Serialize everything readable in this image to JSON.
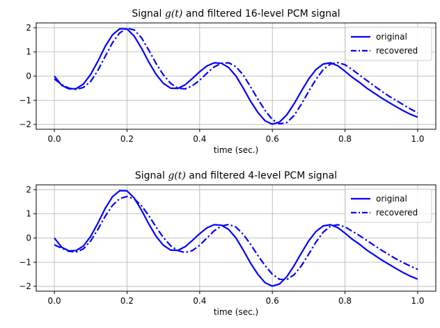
{
  "chart_data": [
    {
      "type": "line",
      "title_prefix": "Signal ",
      "title_math": "g(t)",
      "title_suffix": " and filtered 16-level PCM signal",
      "xlabel": "time (sec.)",
      "ylabel": "",
      "xlim": [
        -0.05,
        1.05
      ],
      "ylim": [
        -2.2,
        2.2
      ],
      "xticks": [
        0.0,
        0.2,
        0.4,
        0.6,
        0.8,
        1.0
      ],
      "xtick_labels": [
        "0.0",
        "0.2",
        "0.4",
        "0.6",
        "0.8",
        "1.0"
      ],
      "yticks": [
        -2,
        -1,
        0,
        1,
        2
      ],
      "ytick_labels": [
        "−2",
        "−1",
        "0",
        "1",
        "2"
      ],
      "grid": true,
      "legend_position": "top-right",
      "series": [
        {
          "name": "original",
          "style": "solid",
          "color": "#0000ff",
          "x": [
            0.0,
            0.02,
            0.04,
            0.06,
            0.08,
            0.1,
            0.12,
            0.14,
            0.16,
            0.18,
            0.2,
            0.22,
            0.24,
            0.26,
            0.28,
            0.3,
            0.32,
            0.34,
            0.36,
            0.38,
            0.4,
            0.42,
            0.44,
            0.46,
            0.48,
            0.5,
            0.52,
            0.54,
            0.56,
            0.58,
            0.6,
            0.62,
            0.64,
            0.66,
            0.68,
            0.7,
            0.72,
            0.74,
            0.76,
            0.78,
            0.8,
            0.82,
            0.84,
            0.86,
            0.88,
            0.9,
            0.92,
            0.94,
            0.96,
            0.98,
            1.0
          ],
          "y": [
            0.0,
            -0.38,
            -0.53,
            -0.52,
            -0.33,
            0.07,
            0.62,
            1.23,
            1.71,
            1.96,
            1.95,
            1.65,
            1.15,
            0.58,
            0.07,
            -0.3,
            -0.5,
            -0.51,
            -0.36,
            -0.1,
            0.18,
            0.42,
            0.55,
            0.53,
            0.35,
            0.0,
            -0.5,
            -1.04,
            -1.5,
            -1.85,
            -1.99,
            -1.9,
            -1.6,
            -1.14,
            -0.62,
            -0.12,
            0.27,
            0.5,
            0.55,
            0.43,
            0.2,
            -0.05,
            -0.26,
            -0.5,
            -0.7,
            -0.9,
            -1.08,
            -1.26,
            -1.43,
            -1.58,
            -1.7
          ]
        },
        {
          "name": "recovered",
          "style": "dashdot",
          "color": "#0000ff",
          "x": [
            0.0,
            0.02,
            0.04,
            0.06,
            0.08,
            0.1,
            0.12,
            0.14,
            0.16,
            0.18,
            0.2,
            0.22,
            0.24,
            0.26,
            0.28,
            0.3,
            0.32,
            0.34,
            0.36,
            0.38,
            0.4,
            0.42,
            0.44,
            0.46,
            0.48,
            0.5,
            0.52,
            0.54,
            0.56,
            0.58,
            0.6,
            0.62,
            0.64,
            0.66,
            0.68,
            0.7,
            0.72,
            0.74,
            0.76,
            0.78,
            0.8,
            0.82,
            0.84,
            0.86,
            0.88,
            0.9,
            0.92,
            0.94,
            0.96,
            0.98,
            1.0
          ],
          "y": [
            -0.12,
            -0.35,
            -0.5,
            -0.55,
            -0.47,
            -0.22,
            0.24,
            0.82,
            1.38,
            1.79,
            1.98,
            1.91,
            1.58,
            1.07,
            0.52,
            0.05,
            -0.3,
            -0.5,
            -0.53,
            -0.4,
            -0.17,
            0.12,
            0.38,
            0.53,
            0.55,
            0.39,
            0.04,
            -0.44,
            -0.95,
            -1.42,
            -1.8,
            -1.98,
            -1.92,
            -1.63,
            -1.16,
            -0.63,
            -0.14,
            0.27,
            0.5,
            0.56,
            0.47,
            0.27,
            0.04,
            -0.18,
            -0.4,
            -0.62,
            -0.82,
            -1.0,
            -1.18,
            -1.36,
            -1.52
          ]
        }
      ]
    },
    {
      "type": "line",
      "title_prefix": "Signal ",
      "title_math": "g(t)",
      "title_suffix": " and filtered 4-level PCM signal",
      "xlabel": "time (sec.)",
      "ylabel": "",
      "xlim": [
        -0.05,
        1.05
      ],
      "ylim": [
        -2.2,
        2.2
      ],
      "xticks": [
        0.0,
        0.2,
        0.4,
        0.6,
        0.8,
        1.0
      ],
      "xtick_labels": [
        "0.0",
        "0.2",
        "0.4",
        "0.6",
        "0.8",
        "1.0"
      ],
      "yticks": [
        -2,
        -1,
        0,
        1,
        2
      ],
      "ytick_labels": [
        "−2",
        "−1",
        "0",
        "1",
        "2"
      ],
      "grid": true,
      "legend_position": "top-right",
      "series": [
        {
          "name": "original",
          "style": "solid",
          "color": "#0000ff",
          "x": [
            0.0,
            0.02,
            0.04,
            0.06,
            0.08,
            0.1,
            0.12,
            0.14,
            0.16,
            0.18,
            0.2,
            0.22,
            0.24,
            0.26,
            0.28,
            0.3,
            0.32,
            0.34,
            0.36,
            0.38,
            0.4,
            0.42,
            0.44,
            0.46,
            0.48,
            0.5,
            0.52,
            0.54,
            0.56,
            0.58,
            0.6,
            0.62,
            0.64,
            0.66,
            0.68,
            0.7,
            0.72,
            0.74,
            0.76,
            0.78,
            0.8,
            0.82,
            0.84,
            0.86,
            0.88,
            0.9,
            0.92,
            0.94,
            0.96,
            0.98,
            1.0
          ],
          "y": [
            0.0,
            -0.38,
            -0.53,
            -0.52,
            -0.33,
            0.07,
            0.62,
            1.23,
            1.71,
            1.96,
            1.95,
            1.65,
            1.15,
            0.58,
            0.07,
            -0.3,
            -0.5,
            -0.51,
            -0.36,
            -0.1,
            0.18,
            0.42,
            0.55,
            0.53,
            0.35,
            0.0,
            -0.5,
            -1.04,
            -1.5,
            -1.85,
            -1.99,
            -1.9,
            -1.6,
            -1.14,
            -0.62,
            -0.12,
            0.27,
            0.5,
            0.55,
            0.43,
            0.2,
            -0.05,
            -0.26,
            -0.5,
            -0.7,
            -0.9,
            -1.08,
            -1.26,
            -1.43,
            -1.58,
            -1.7
          ]
        },
        {
          "name": "recovered",
          "style": "dashdot",
          "color": "#0000ff",
          "x": [
            0.0,
            0.02,
            0.04,
            0.06,
            0.08,
            0.1,
            0.12,
            0.14,
            0.16,
            0.18,
            0.2,
            0.22,
            0.24,
            0.26,
            0.28,
            0.3,
            0.32,
            0.34,
            0.36,
            0.38,
            0.4,
            0.42,
            0.44,
            0.46,
            0.48,
            0.5,
            0.52,
            0.54,
            0.56,
            0.58,
            0.6,
            0.62,
            0.64,
            0.66,
            0.68,
            0.7,
            0.72,
            0.74,
            0.76,
            0.78,
            0.8,
            0.82,
            0.84,
            0.86,
            0.88,
            0.9,
            0.92,
            0.94,
            0.96,
            0.98,
            1.0
          ],
          "y": [
            -0.28,
            -0.42,
            -0.55,
            -0.58,
            -0.45,
            -0.12,
            0.36,
            0.9,
            1.35,
            1.63,
            1.72,
            1.62,
            1.33,
            0.93,
            0.45,
            0.02,
            -0.32,
            -0.52,
            -0.6,
            -0.52,
            -0.3,
            -0.0,
            0.3,
            0.5,
            0.56,
            0.45,
            0.15,
            -0.26,
            -0.72,
            -1.14,
            -1.5,
            -1.71,
            -1.72,
            -1.52,
            -1.15,
            -0.67,
            -0.17,
            0.24,
            0.49,
            0.55,
            0.46,
            0.28,
            0.1,
            -0.1,
            -0.3,
            -0.5,
            -0.68,
            -0.86,
            -1.02,
            -1.16,
            -1.3
          ]
        }
      ]
    }
  ]
}
